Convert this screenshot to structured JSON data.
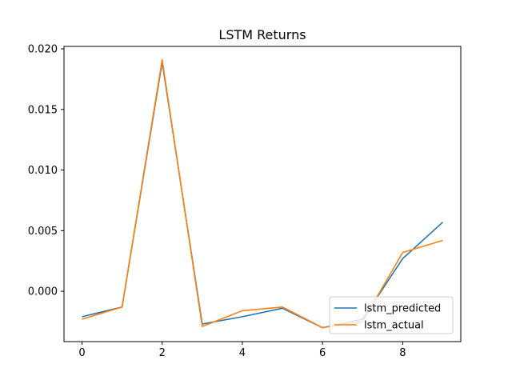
{
  "chart_data": {
    "type": "line",
    "title": "LSTM Returns",
    "xlabel": "",
    "ylabel": "",
    "x": [
      0,
      1,
      2,
      3,
      4,
      5,
      6,
      7,
      8,
      9
    ],
    "x_ticks": [
      0,
      2,
      4,
      6,
      8
    ],
    "x_tick_labels": [
      "0",
      "2",
      "4",
      "6",
      "8"
    ],
    "y_ticks": [
      0.0,
      0.005,
      0.01,
      0.015,
      0.02
    ],
    "y_tick_labels": [
      "0.000",
      "0.005",
      "0.010",
      "0.015",
      "0.020"
    ],
    "xlim": [
      -0.45,
      9.45
    ],
    "ylim": [
      -0.00415,
      0.0202
    ],
    "grid": false,
    "legend_position": "lower right",
    "series": [
      {
        "name": "lstm_predicted",
        "color": "#1f77b4",
        "values": [
          -0.0021,
          -0.0013,
          0.0189,
          -0.0027,
          -0.0021,
          -0.0014,
          -0.003,
          -0.0023,
          0.0027,
          0.0057
        ]
      },
      {
        "name": "lstm_actual",
        "color": "#ff7f0e",
        "values": [
          -0.0023,
          -0.0013,
          0.0191,
          -0.0029,
          -0.0016,
          -0.0013,
          -0.003,
          -0.0025,
          0.0032,
          0.0042
        ]
      }
    ]
  }
}
